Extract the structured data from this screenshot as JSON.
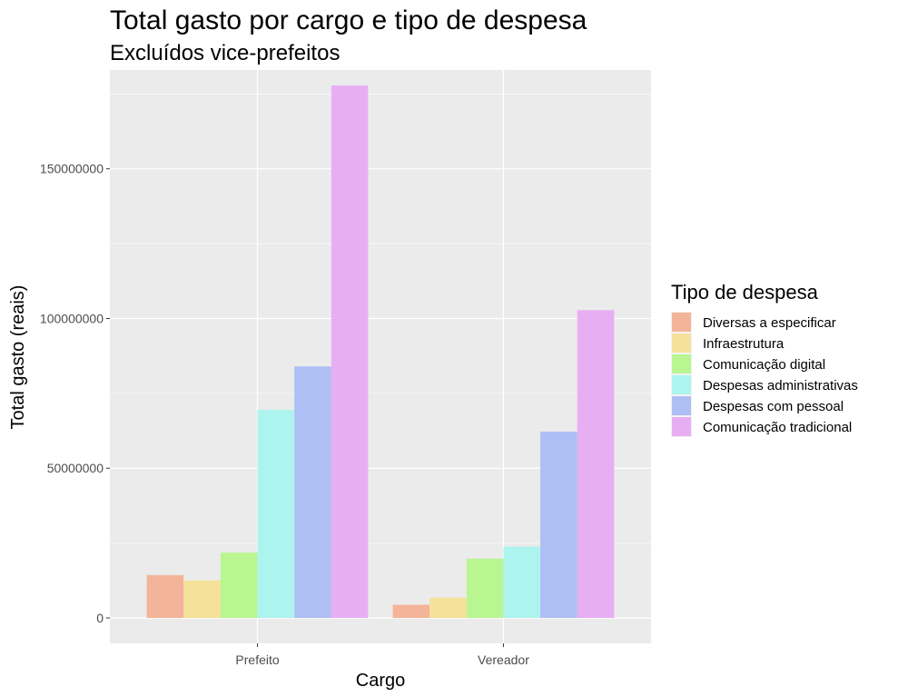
{
  "chart_data": {
    "type": "bar",
    "title": "Total gasto por cargo e tipo de despesa",
    "subtitle": "Excluídos vice-prefeitos",
    "xlabel": "Cargo",
    "ylabel": "Total gasto (reais)",
    "categories": [
      "Prefeito",
      "Vereador"
    ],
    "ylim": [
      -8500000,
      183000000
    ],
    "yticks": [
      0,
      50000000,
      100000000,
      150000000
    ],
    "ytick_labels": [
      "0",
      "50000000",
      "100000000",
      "150000000"
    ],
    "grid": true,
    "legend": {
      "title": "Tipo de despesa",
      "position": "right"
    },
    "series": [
      {
        "name": "Diversas a especificar",
        "color": "#F4B49A",
        "values": [
          14300000,
          4400000
        ]
      },
      {
        "name": "Infraestrutura",
        "color": "#F5E19A",
        "values": [
          12500000,
          6800000
        ]
      },
      {
        "name": "Comunicação digital",
        "color": "#B9F591",
        "values": [
          21800000,
          19800000
        ]
      },
      {
        "name": "Despesas administrativas",
        "color": "#AEF4EE",
        "values": [
          69500000,
          23800000
        ]
      },
      {
        "name": "Despesas com pessoal",
        "color": "#ADBFF4",
        "values": [
          84000000,
          62200000
        ]
      },
      {
        "name": "Comunicação tradicional",
        "color": "#E8AEF4",
        "values": [
          177800000,
          102800000
        ]
      }
    ]
  }
}
